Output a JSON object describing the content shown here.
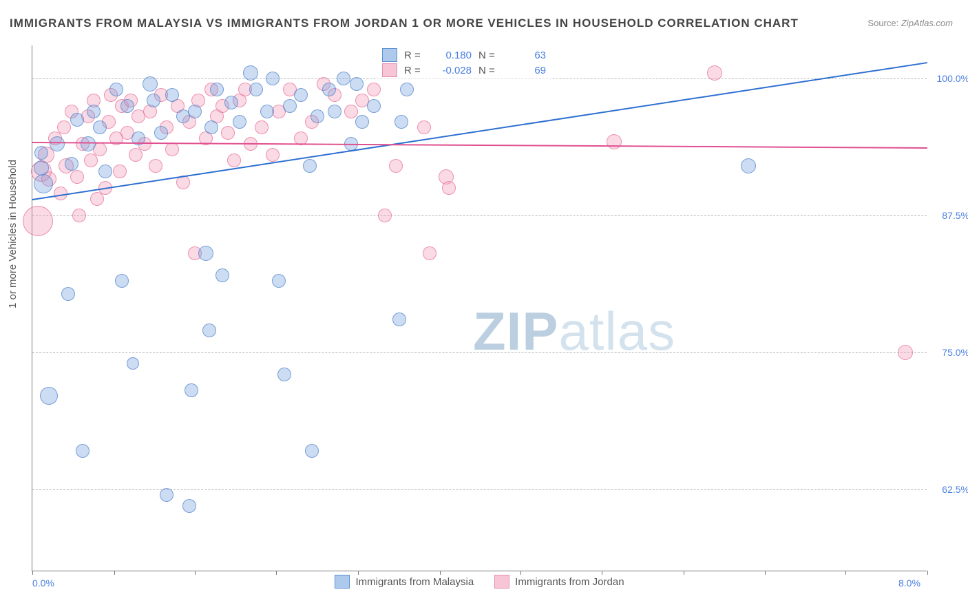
{
  "title": "IMMIGRANTS FROM MALAYSIA VS IMMIGRANTS FROM JORDAN 1 OR MORE VEHICLES IN HOUSEHOLD CORRELATION CHART",
  "source_label": "Source:",
  "source_value": "ZipAtlas.com",
  "ylabel": "1 or more Vehicles in Household",
  "watermark_a": "ZIP",
  "watermark_b": "atlas",
  "chart": {
    "type": "scatter",
    "xlim": [
      0,
      8
    ],
    "ylim": [
      55,
      103
    ],
    "x_ticks_at": [
      0,
      0.73,
      1.45,
      2.18,
      2.91,
      3.64,
      4.36,
      5.09,
      5.82,
      6.55,
      7.27,
      8
    ],
    "x_tick_labels": {
      "0": "0.0%",
      "8": "8.0%"
    },
    "y_grid_at": [
      62.5,
      75,
      87.5,
      100
    ],
    "y_tick_labels": {
      "62.5": "62.5%",
      "75": "75.0%",
      "87.5": "87.5%",
      "100": "100.0%"
    },
    "colors": {
      "blue_fill": "rgba(106,156,220,0.35)",
      "blue_stroke": "rgba(80,130,200,0.7)",
      "blue_line": "#2d6fd0",
      "pink_fill": "rgba(240,150,180,0.35)",
      "pink_stroke": "rgba(230,110,150,0.7)",
      "pink_line": "#e05090",
      "grid": "#bbb",
      "axis": "#777",
      "text_axis": "#4a7fe0",
      "text_body": "#555"
    }
  },
  "legend_top": [
    {
      "cls": "blue",
      "r_label": "R =",
      "r_val": "0.180",
      "n_label": "N =",
      "n_val": "63"
    },
    {
      "cls": "pink",
      "r_label": "R =",
      "r_val": "-0.028",
      "n_label": "N =",
      "n_val": "69"
    }
  ],
  "legend_bottom": [
    {
      "cls": "blue",
      "label": "Immigrants from Malaysia"
    },
    {
      "cls": "pink",
      "label": "Immigrants from Jordan"
    }
  ],
  "trend_lines": [
    {
      "cls": "blue",
      "x1": 0,
      "y1": 89.0,
      "x2": 8,
      "y2": 101.5
    },
    {
      "cls": "pink",
      "x1": 0,
      "y1": 94.2,
      "x2": 8,
      "y2": 93.7
    }
  ],
  "points_blue": [
    {
      "x": 0.08,
      "y": 91.8,
      "r": 11
    },
    {
      "x": 0.08,
      "y": 93.2,
      "r": 10
    },
    {
      "x": 0.1,
      "y": 90.4,
      "r": 14
    },
    {
      "x": 0.15,
      "y": 71.0,
      "r": 13
    },
    {
      "x": 0.22,
      "y": 94.0,
      "r": 11
    },
    {
      "x": 0.32,
      "y": 80.3,
      "r": 10
    },
    {
      "x": 0.35,
      "y": 92.2,
      "r": 10
    },
    {
      "x": 0.4,
      "y": 96.2,
      "r": 10
    },
    {
      "x": 0.45,
      "y": 66.0,
      "r": 10
    },
    {
      "x": 0.5,
      "y": 94.0,
      "r": 11
    },
    {
      "x": 0.55,
      "y": 97.0,
      "r": 10
    },
    {
      "x": 0.6,
      "y": 95.5,
      "r": 10
    },
    {
      "x": 0.65,
      "y": 91.5,
      "r": 10
    },
    {
      "x": 0.75,
      "y": 99.0,
      "r": 10
    },
    {
      "x": 0.8,
      "y": 81.5,
      "r": 10
    },
    {
      "x": 0.85,
      "y": 97.5,
      "r": 10
    },
    {
      "x": 0.9,
      "y": 74.0,
      "r": 9
    },
    {
      "x": 0.95,
      "y": 94.5,
      "r": 10
    },
    {
      "x": 1.05,
      "y": 99.5,
      "r": 11
    },
    {
      "x": 1.08,
      "y": 98.0,
      "r": 10
    },
    {
      "x": 1.15,
      "y": 95.0,
      "r": 10
    },
    {
      "x": 1.2,
      "y": 62.0,
      "r": 10
    },
    {
      "x": 1.25,
      "y": 98.5,
      "r": 10
    },
    {
      "x": 1.35,
      "y": 96.5,
      "r": 10
    },
    {
      "x": 1.4,
      "y": 61.0,
      "r": 10
    },
    {
      "x": 1.42,
      "y": 71.5,
      "r": 10
    },
    {
      "x": 1.45,
      "y": 97.0,
      "r": 10
    },
    {
      "x": 1.55,
      "y": 84.0,
      "r": 11
    },
    {
      "x": 1.58,
      "y": 77.0,
      "r": 10
    },
    {
      "x": 1.6,
      "y": 95.5,
      "r": 10
    },
    {
      "x": 1.65,
      "y": 99.0,
      "r": 10
    },
    {
      "x": 1.7,
      "y": 82.0,
      "r": 10
    },
    {
      "x": 1.78,
      "y": 97.8,
      "r": 10
    },
    {
      "x": 1.85,
      "y": 96.0,
      "r": 10
    },
    {
      "x": 1.95,
      "y": 100.5,
      "r": 11
    },
    {
      "x": 2.0,
      "y": 99.0,
      "r": 10
    },
    {
      "x": 2.1,
      "y": 97.0,
      "r": 10
    },
    {
      "x": 2.15,
      "y": 100.0,
      "r": 10
    },
    {
      "x": 2.2,
      "y": 81.5,
      "r": 10
    },
    {
      "x": 2.25,
      "y": 73.0,
      "r": 10
    },
    {
      "x": 2.3,
      "y": 97.5,
      "r": 10
    },
    {
      "x": 2.4,
      "y": 98.5,
      "r": 10
    },
    {
      "x": 2.48,
      "y": 92.0,
      "r": 10
    },
    {
      "x": 2.5,
      "y": 66.0,
      "r": 10
    },
    {
      "x": 2.55,
      "y": 96.5,
      "r": 10
    },
    {
      "x": 2.65,
      "y": 99.0,
      "r": 10
    },
    {
      "x": 2.7,
      "y": 97.0,
      "r": 10
    },
    {
      "x": 2.78,
      "y": 100.0,
      "r": 10
    },
    {
      "x": 2.85,
      "y": 94.0,
      "r": 10
    },
    {
      "x": 2.9,
      "y": 99.5,
      "r": 10
    },
    {
      "x": 2.95,
      "y": 96.0,
      "r": 10
    },
    {
      "x": 3.05,
      "y": 97.5,
      "r": 10
    },
    {
      "x": 3.28,
      "y": 78.0,
      "r": 10
    },
    {
      "x": 3.3,
      "y": 96.0,
      "r": 10
    },
    {
      "x": 3.35,
      "y": 99.0,
      "r": 10
    },
    {
      "x": 6.4,
      "y": 92.0,
      "r": 11
    }
  ],
  "points_pink": [
    {
      "x": 0.05,
      "y": 87.0,
      "r": 22
    },
    {
      "x": 0.08,
      "y": 91.5,
      "r": 15
    },
    {
      "x": 0.12,
      "y": 93.0,
      "r": 12
    },
    {
      "x": 0.15,
      "y": 90.8,
      "r": 11
    },
    {
      "x": 0.2,
      "y": 94.5,
      "r": 10
    },
    {
      "x": 0.25,
      "y": 89.5,
      "r": 10
    },
    {
      "x": 0.28,
      "y": 95.5,
      "r": 10
    },
    {
      "x": 0.3,
      "y": 92.0,
      "r": 11
    },
    {
      "x": 0.35,
      "y": 97.0,
      "r": 10
    },
    {
      "x": 0.4,
      "y": 91.0,
      "r": 10
    },
    {
      "x": 0.42,
      "y": 87.5,
      "r": 10
    },
    {
      "x": 0.45,
      "y": 94.0,
      "r": 10
    },
    {
      "x": 0.5,
      "y": 96.5,
      "r": 10
    },
    {
      "x": 0.52,
      "y": 92.5,
      "r": 10
    },
    {
      "x": 0.55,
      "y": 98.0,
      "r": 10
    },
    {
      "x": 0.58,
      "y": 89.0,
      "r": 10
    },
    {
      "x": 0.6,
      "y": 93.5,
      "r": 10
    },
    {
      "x": 0.65,
      "y": 90.0,
      "r": 10
    },
    {
      "x": 0.68,
      "y": 96.0,
      "r": 10
    },
    {
      "x": 0.7,
      "y": 98.5,
      "r": 10
    },
    {
      "x": 0.75,
      "y": 94.5,
      "r": 10
    },
    {
      "x": 0.78,
      "y": 91.5,
      "r": 10
    },
    {
      "x": 0.8,
      "y": 97.5,
      "r": 10
    },
    {
      "x": 0.85,
      "y": 95.0,
      "r": 10
    },
    {
      "x": 0.88,
      "y": 98.0,
      "r": 10
    },
    {
      "x": 0.92,
      "y": 93.0,
      "r": 10
    },
    {
      "x": 0.95,
      "y": 96.5,
      "r": 10
    },
    {
      "x": 1.0,
      "y": 94.0,
      "r": 10
    },
    {
      "x": 1.05,
      "y": 97.0,
      "r": 10
    },
    {
      "x": 1.1,
      "y": 92.0,
      "r": 10
    },
    {
      "x": 1.15,
      "y": 98.5,
      "r": 10
    },
    {
      "x": 1.2,
      "y": 95.5,
      "r": 10
    },
    {
      "x": 1.25,
      "y": 93.5,
      "r": 10
    },
    {
      "x": 1.3,
      "y": 97.5,
      "r": 10
    },
    {
      "x": 1.35,
      "y": 90.5,
      "r": 10
    },
    {
      "x": 1.4,
      "y": 96.0,
      "r": 10
    },
    {
      "x": 1.45,
      "y": 84.0,
      "r": 10
    },
    {
      "x": 1.48,
      "y": 98.0,
      "r": 10
    },
    {
      "x": 1.55,
      "y": 94.5,
      "r": 10
    },
    {
      "x": 1.6,
      "y": 99.0,
      "r": 10
    },
    {
      "x": 1.65,
      "y": 96.5,
      "r": 10
    },
    {
      "x": 1.7,
      "y": 97.5,
      "r": 10
    },
    {
      "x": 1.75,
      "y": 95.0,
      "r": 10
    },
    {
      "x": 1.8,
      "y": 92.5,
      "r": 10
    },
    {
      "x": 1.85,
      "y": 98.0,
      "r": 10
    },
    {
      "x": 1.9,
      "y": 99.0,
      "r": 10
    },
    {
      "x": 1.95,
      "y": 94.0,
      "r": 10
    },
    {
      "x": 2.05,
      "y": 95.5,
      "r": 10
    },
    {
      "x": 2.15,
      "y": 93.0,
      "r": 10
    },
    {
      "x": 2.2,
      "y": 97.0,
      "r": 10
    },
    {
      "x": 2.3,
      "y": 99.0,
      "r": 10
    },
    {
      "x": 2.4,
      "y": 94.5,
      "r": 10
    },
    {
      "x": 2.5,
      "y": 96.0,
      "r": 10
    },
    {
      "x": 2.6,
      "y": 99.5,
      "r": 10
    },
    {
      "x": 2.7,
      "y": 98.5,
      "r": 10
    },
    {
      "x": 2.85,
      "y": 97.0,
      "r": 10
    },
    {
      "x": 2.95,
      "y": 98.0,
      "r": 10
    },
    {
      "x": 3.05,
      "y": 99.0,
      "r": 10
    },
    {
      "x": 3.15,
      "y": 87.5,
      "r": 10
    },
    {
      "x": 3.25,
      "y": 92.0,
      "r": 10
    },
    {
      "x": 3.5,
      "y": 95.5,
      "r": 10
    },
    {
      "x": 3.7,
      "y": 91.0,
      "r": 11
    },
    {
      "x": 3.72,
      "y": 90.0,
      "r": 10
    },
    {
      "x": 3.55,
      "y": 84.0,
      "r": 10
    },
    {
      "x": 5.2,
      "y": 94.2,
      "r": 11
    },
    {
      "x": 6.1,
      "y": 100.5,
      "r": 11
    },
    {
      "x": 7.8,
      "y": 75.0,
      "r": 11
    }
  ]
}
